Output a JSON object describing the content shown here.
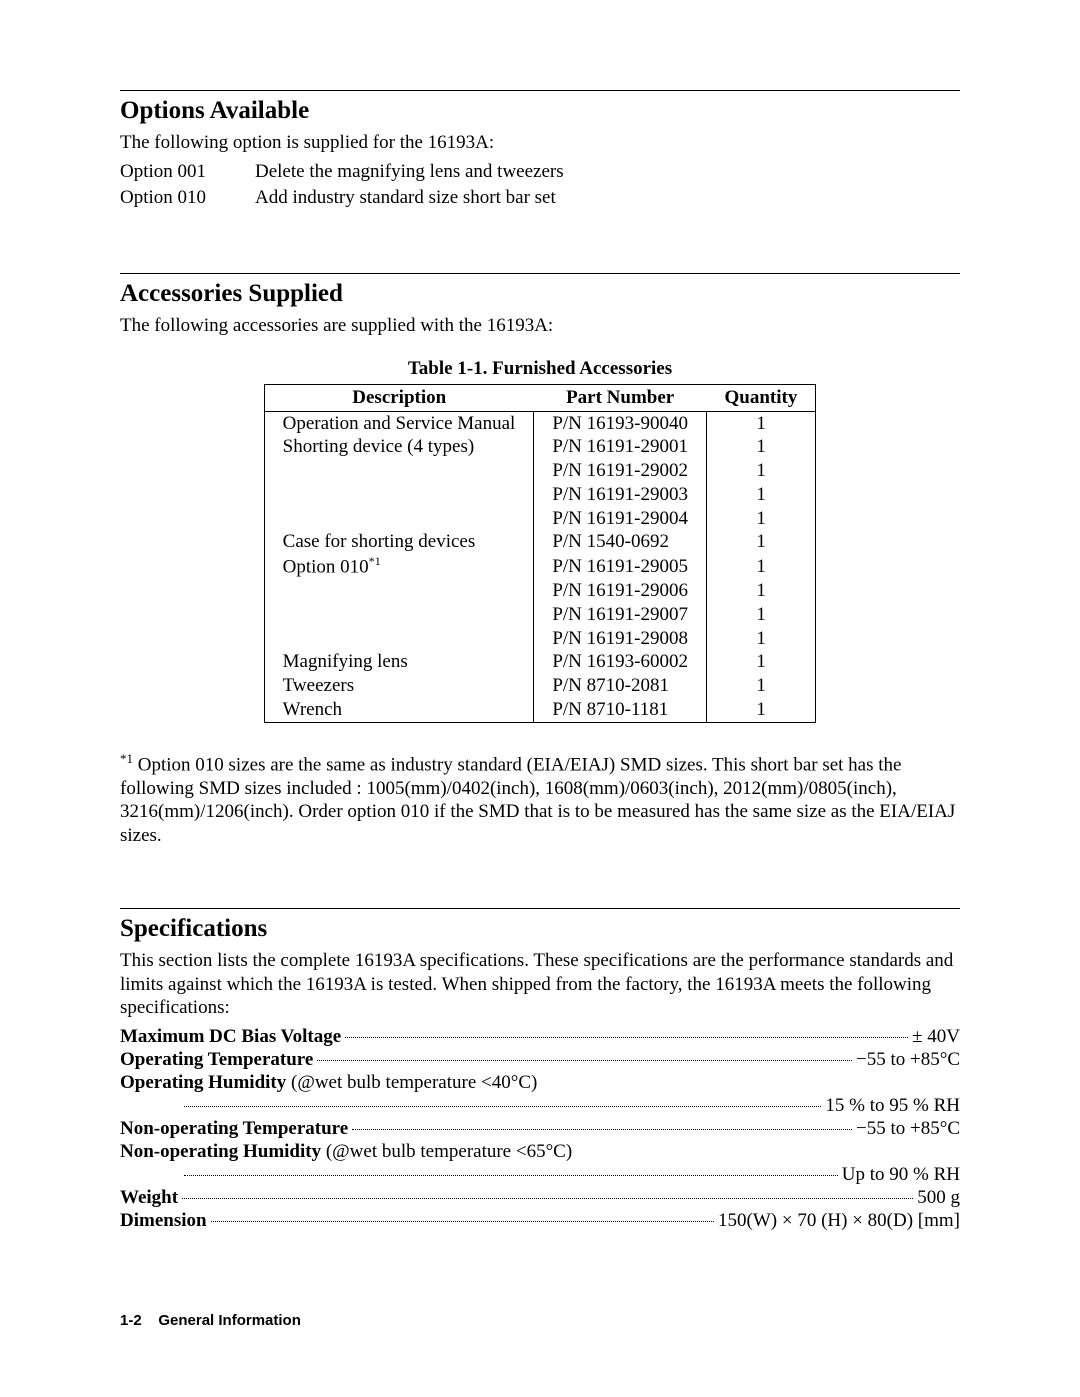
{
  "options": {
    "heading": "Options Available",
    "intro": "The following option is supplied for the 16193A:",
    "items": [
      {
        "label": "Option 001",
        "desc": "Delete the magnifying lens and tweezers"
      },
      {
        "label": "Option 010",
        "desc": "Add industry standard size short bar set"
      }
    ]
  },
  "accessories": {
    "heading": "Accessories Supplied",
    "intro": "The following accessories are supplied with the 16193A:",
    "table_caption": "Table 1-1. Furnished Accessories",
    "columns": [
      "Description",
      "Part Number",
      "Quantity"
    ],
    "rows": [
      {
        "desc": "Operation and Service Manual",
        "pn": "P/N 16193-90040",
        "qty": "1"
      },
      {
        "desc": "Shorting device (4 types)",
        "pn": "P/N 16191-29001",
        "qty": "1"
      },
      {
        "desc": "",
        "pn": "P/N 16191-29002",
        "qty": "1"
      },
      {
        "desc": "",
        "pn": "P/N 16191-29003",
        "qty": "1"
      },
      {
        "desc": "",
        "pn": "P/N 16191-29004",
        "qty": "1"
      },
      {
        "desc": "Case for shorting devices",
        "pn": "P/N 1540-0692",
        "qty": "1"
      },
      {
        "desc": "Option 010",
        "pn": "P/N 16191-29005",
        "qty": "1",
        "sup": "*1"
      },
      {
        "desc": "",
        "pn": "P/N 16191-29006",
        "qty": "1"
      },
      {
        "desc": "",
        "pn": "P/N 16191-29007",
        "qty": "1"
      },
      {
        "desc": "",
        "pn": "P/N 16191-29008",
        "qty": "1"
      },
      {
        "desc": "Magnifying lens",
        "pn": "P/N 16193-60002",
        "qty": "1"
      },
      {
        "desc": "Tweezers",
        "pn": "P/N 8710-2081",
        "qty": "1"
      },
      {
        "desc": "Wrench",
        "pn": "P/N 8710-1181",
        "qty": "1"
      }
    ],
    "footnote_marker": "*1",
    "footnote": " Option 010 sizes are the same as industry standard (EIA/EIAJ) SMD sizes. This short bar set has the following SMD sizes included : 1005(mm)/0402(inch), 1608(mm)/0603(inch), 2012(mm)/0805(inch), 3216(mm)/1206(inch). Order option 010 if the SMD that is to be measured has the same size as the EIA/EIAJ sizes."
  },
  "specs": {
    "heading": "Specifications",
    "intro": "This section lists the complete 16193A specifications. These specifications are the performance standards and limits against which the 16193A is tested. When shipped from the factory, the 16193A meets the following specifications:",
    "lines": [
      {
        "label_bold": "Maximum DC Bias Voltage",
        "label_rest": "",
        "value": "± 40V"
      },
      {
        "label_bold": "Operating Temperature",
        "label_rest": "",
        "value": "−55 to +85°C"
      },
      {
        "label_bold": "Operating Humidity",
        "label_rest": " (@wet bulb temperature <40°C)",
        "no_value": true
      },
      {
        "indent": true,
        "value": "15 % to 95 % RH"
      },
      {
        "label_bold": "Non-operating Temperature",
        "label_rest": "",
        "value": "−55 to +85°C"
      },
      {
        "label_bold": "Non-operating Humidity",
        "label_rest": " (@wet bulb temperature <65°C)",
        "no_value": true
      },
      {
        "indent": true,
        "value": "Up to 90 % RH"
      },
      {
        "label_bold": "Weight",
        "label_rest": "",
        "value": "500 g"
      },
      {
        "label_bold": "Dimension",
        "label_rest": "",
        "value": "150(W) × 70 (H) × 80(D) [mm]"
      }
    ]
  },
  "footer": {
    "page": "1-2",
    "text": "General Information"
  }
}
